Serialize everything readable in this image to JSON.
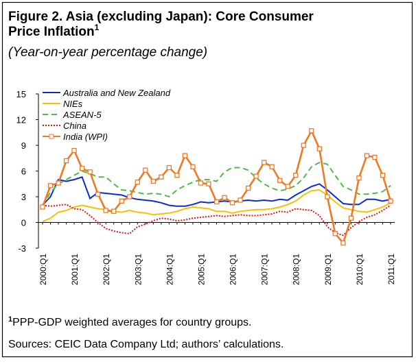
{
  "chart_data": {
    "type": "line",
    "title": "Figure 2. Asia (excluding Japan): Core Consumer Price Inflation",
    "title_note": "1",
    "subtitle": "(Year-on-year percentage change)",
    "categories": [
      "2000:Q1",
      null,
      null,
      null,
      "2001:Q1",
      null,
      null,
      null,
      "2002:Q1",
      null,
      null,
      null,
      "2003:Q1",
      null,
      null,
      null,
      "2004:Q1",
      null,
      null,
      null,
      "2005:Q1",
      null,
      null,
      null,
      "2006:Q1",
      null,
      null,
      null,
      "2007:Q1",
      null,
      null,
      null,
      "2008:Q1",
      null,
      null,
      null,
      "2009:Q1",
      null,
      null,
      null,
      "2010:Q1",
      null,
      null,
      null,
      "2011:Q1"
    ],
    "ylim": [
      -3,
      15
    ],
    "yticks": [
      -3,
      0,
      3,
      6,
      9,
      12,
      15
    ],
    "grid": false,
    "legend": "upper left",
    "series": [
      {
        "name": "Australia and New Zealand",
        "color": "#0a2ad6",
        "line_style": "solid",
        "values": [
          2.0,
          3.0,
          5.0,
          4.8,
          5.0,
          5.3,
          2.8,
          3.5,
          3.4,
          3.3,
          3.2,
          2.9,
          2.7,
          2.6,
          2.5,
          2.3,
          2.0,
          1.9,
          1.9,
          2.1,
          2.4,
          2.3,
          2.4,
          2.5,
          2.4,
          2.5,
          2.6,
          2.5,
          2.6,
          2.5,
          2.7,
          2.6,
          3.2,
          3.7,
          4.2,
          4.5,
          3.8,
          3.0,
          2.2,
          2.1,
          2.1,
          2.7,
          2.7,
          2.5,
          2.7
        ]
      },
      {
        "name": "NIEs",
        "color": "#f5c000",
        "line_style": "solid",
        "values": [
          0.1,
          0.5,
          1.2,
          1.4,
          1.8,
          2.0,
          1.8,
          1.6,
          1.5,
          1.3,
          1.2,
          1.4,
          1.2,
          1.1,
          0.9,
          1.0,
          1.1,
          1.3,
          1.6,
          1.8,
          1.7,
          1.6,
          1.3,
          1.3,
          1.1,
          1.3,
          1.4,
          1.5,
          1.5,
          1.6,
          1.8,
          2.1,
          2.5,
          3.2,
          3.7,
          3.8,
          3.2,
          2.4,
          1.7,
          1.5,
          1.3,
          1.2,
          1.5,
          1.8,
          2.3
        ]
      },
      {
        "name": "ASEAN-5",
        "color": "#52b848",
        "line_style": "dashed",
        "values": [
          2.0,
          3.5,
          4.5,
          5.0,
          5.5,
          6.0,
          5.7,
          5.3,
          5.3,
          4.5,
          3.8,
          3.7,
          3.5,
          3.3,
          3.4,
          3.3,
          3.0,
          3.8,
          4.3,
          4.7,
          5.0,
          5.0,
          4.8,
          5.9,
          6.4,
          6.4,
          6.1,
          5.2,
          4.5,
          4.0,
          3.7,
          3.9,
          4.3,
          5.2,
          6.5,
          7.0,
          6.8,
          5.5,
          4.2,
          3.8,
          3.3,
          3.3,
          3.4,
          3.6,
          4.3
        ]
      },
      {
        "name": "China",
        "color": "#e01010",
        "line_style": "dotted",
        "values": [
          2.0,
          1.9,
          2.0,
          2.1,
          1.6,
          1.5,
          0.8,
          0.0,
          -0.7,
          -1.0,
          -1.2,
          -1.3,
          -0.5,
          -0.2,
          0.2,
          0.5,
          0.4,
          0.2,
          0.3,
          0.5,
          0.6,
          0.7,
          0.8,
          0.7,
          0.8,
          0.9,
          0.8,
          0.8,
          0.9,
          1.0,
          1.3,
          1.2,
          1.6,
          1.5,
          1.4,
          0.8,
          -0.5,
          -1.2,
          -1.5,
          -0.6,
          0.1,
          0.6,
          0.9,
          1.4,
          2.0
        ]
      },
      {
        "name": "India (WPI)",
        "color": "#f07820",
        "line_style": "solid",
        "marker": "square",
        "values": [
          1.8,
          4.3,
          4.6,
          7.2,
          8.4,
          6.3,
          5.9,
          3.3,
          1.4,
          1.3,
          2.5,
          3.0,
          4.7,
          6.1,
          4.8,
          5.3,
          6.4,
          5.5,
          7.8,
          6.5,
          4.6,
          4.5,
          2.4,
          2.9,
          2.3,
          2.6,
          4.0,
          5.4,
          7.0,
          6.5,
          4.9,
          4.2,
          5.5,
          9.0,
          10.7,
          8.6,
          3.0,
          -1.3,
          -2.4,
          0.5,
          5.2,
          7.8,
          7.6,
          5.5,
          2.5
        ]
      }
    ],
    "notes": [
      {
        "marker": "1",
        "text": "PPP-GDP weighted averages for country groups."
      }
    ],
    "source": "Sources: CEIC Data Company Ltd; authors’ calculations."
  }
}
